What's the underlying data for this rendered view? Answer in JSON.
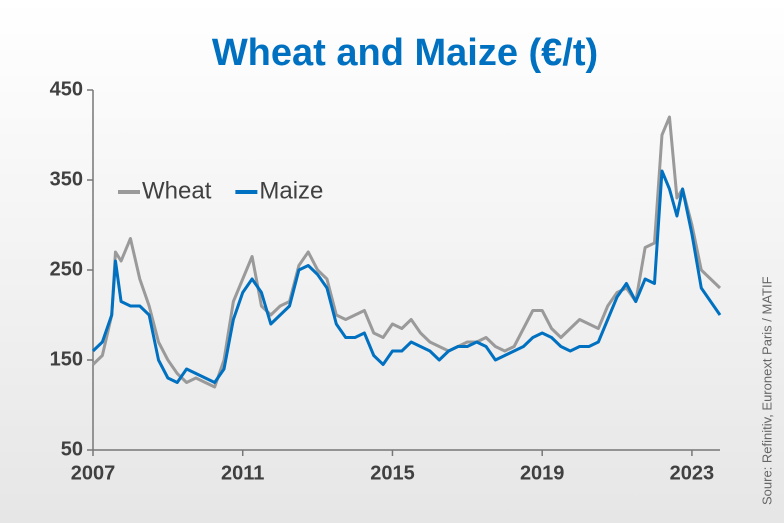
{
  "chart_data": {
    "type": "line",
    "title": "Wheat and Maize (€/t)",
    "source": "Soure: Refinitiv, Euronext Paris / MATIF",
    "x": [
      2007.0,
      2007.25,
      2007.5,
      2007.6,
      2007.75,
      2008.0,
      2008.25,
      2008.5,
      2008.75,
      2009.0,
      2009.25,
      2009.5,
      2009.75,
      2010.0,
      2010.25,
      2010.5,
      2010.75,
      2011.0,
      2011.25,
      2011.5,
      2011.75,
      2012.0,
      2012.25,
      2012.5,
      2012.75,
      2013.0,
      2013.25,
      2013.5,
      2013.75,
      2014.0,
      2014.25,
      2014.5,
      2014.75,
      2015.0,
      2015.25,
      2015.5,
      2015.75,
      2016.0,
      2016.25,
      2016.5,
      2016.75,
      2017.0,
      2017.25,
      2017.5,
      2017.75,
      2018.0,
      2018.25,
      2018.5,
      2018.75,
      2019.0,
      2019.25,
      2019.5,
      2019.75,
      2020.0,
      2020.25,
      2020.5,
      2020.75,
      2021.0,
      2021.25,
      2021.5,
      2021.75,
      2022.0,
      2022.2,
      2022.4,
      2022.6,
      2022.75,
      2023.0,
      2023.25,
      2023.5,
      2023.75
    ],
    "series": [
      {
        "name": "Wheat",
        "color": "#9a9a9a",
        "values": [
          145,
          155,
          200,
          270,
          260,
          285,
          240,
          210,
          170,
          150,
          135,
          125,
          130,
          125,
          120,
          150,
          215,
          240,
          265,
          210,
          200,
          210,
          215,
          255,
          270,
          250,
          240,
          200,
          195,
          200,
          205,
          180,
          175,
          190,
          185,
          195,
          180,
          170,
          165,
          160,
          165,
          170,
          170,
          175,
          165,
          160,
          165,
          185,
          205,
          205,
          185,
          175,
          185,
          195,
          190,
          185,
          210,
          225,
          230,
          215,
          275,
          280,
          400,
          420,
          330,
          340,
          300,
          250,
          240,
          230
        ]
      },
      {
        "name": "Maize",
        "color": "#0070c0",
        "values": [
          160,
          170,
          200,
          260,
          215,
          210,
          210,
          200,
          150,
          130,
          125,
          140,
          135,
          130,
          125,
          140,
          195,
          225,
          240,
          225,
          190,
          200,
          210,
          250,
          255,
          245,
          230,
          190,
          175,
          175,
          180,
          155,
          145,
          160,
          160,
          170,
          165,
          160,
          150,
          160,
          165,
          165,
          170,
          165,
          150,
          155,
          160,
          165,
          175,
          180,
          175,
          165,
          160,
          165,
          165,
          170,
          195,
          220,
          235,
          215,
          240,
          235,
          360,
          340,
          310,
          340,
          290,
          230,
          215,
          200
        ]
      }
    ],
    "xlim": [
      2007,
      2023.75
    ],
    "xticks": [
      2007,
      2011,
      2015,
      2019,
      2023
    ],
    "ylim": [
      50,
      450
    ],
    "yticks": [
      50,
      150,
      250,
      350,
      450
    ],
    "legend": "upper left"
  }
}
